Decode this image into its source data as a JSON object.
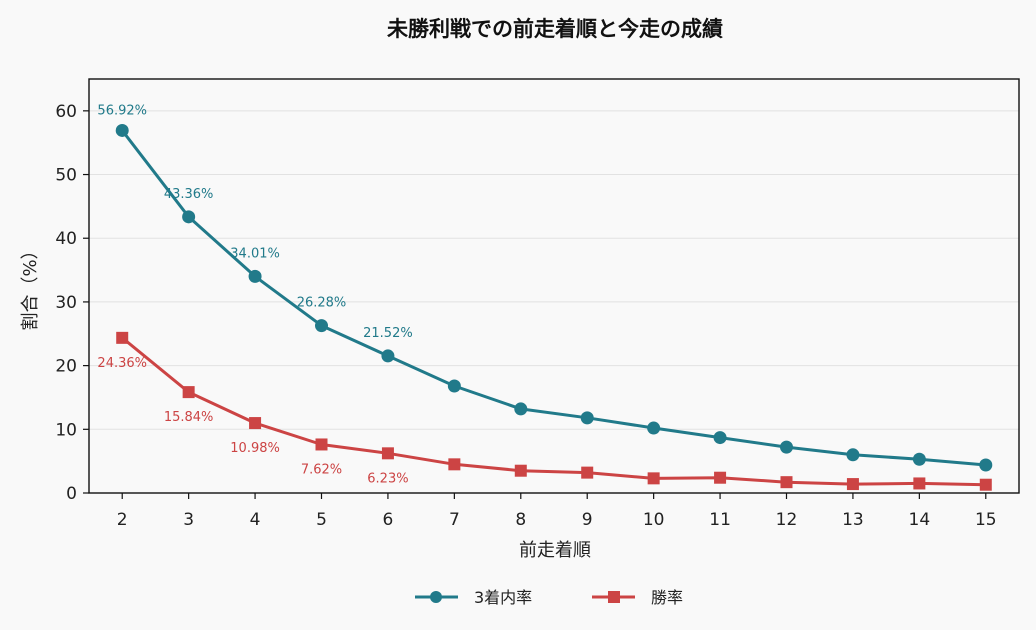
{
  "chart_data": {
    "type": "line",
    "title": "未勝利戦での前走着順と今走の成績",
    "xlabel": "前走着順",
    "ylabel": "割合（%）",
    "x": [
      2,
      3,
      4,
      5,
      6,
      7,
      8,
      9,
      10,
      11,
      12,
      13,
      14,
      15
    ],
    "xlim": [
      1.5,
      15.5
    ],
    "ylim": [
      0,
      65
    ],
    "yticks": [
      0,
      10,
      20,
      30,
      40,
      50,
      60
    ],
    "grid": "y",
    "legend_position": "bottom-center",
    "series": [
      {
        "name": "3着内率",
        "color": "#217a8a",
        "marker": "circle",
        "values": [
          56.92,
          43.36,
          34.01,
          26.28,
          21.52,
          16.8,
          13.2,
          11.8,
          10.2,
          8.7,
          7.2,
          6.0,
          5.3,
          4.4
        ],
        "labels": [
          "56.92%",
          "43.36%",
          "34.01%",
          "26.28%",
          "21.52%"
        ]
      },
      {
        "name": "勝率",
        "color": "#cc4444",
        "marker": "square",
        "values": [
          24.36,
          15.84,
          10.98,
          7.62,
          6.23,
          4.5,
          3.5,
          3.2,
          2.3,
          2.4,
          1.7,
          1.4,
          1.5,
          1.3
        ],
        "labels": [
          "24.36%",
          "15.84%",
          "10.98%",
          "7.62%",
          "6.23%"
        ]
      }
    ]
  }
}
